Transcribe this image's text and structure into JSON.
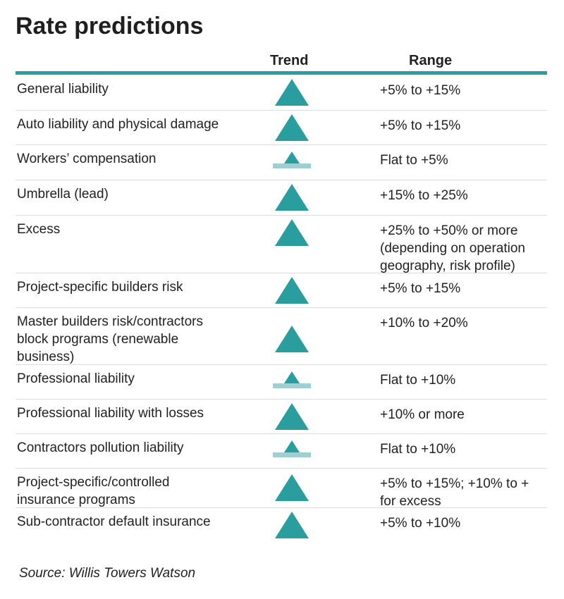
{
  "title": "Rate predictions",
  "headers": {
    "trend": "Trend",
    "range": "Range"
  },
  "colors": {
    "accent": "#2a9d9f",
    "flat_bar": "#9fcfd0"
  },
  "rows": [
    {
      "coverage": "General liability",
      "trend": "up",
      "range": "+5% to +15%"
    },
    {
      "coverage": "Auto liability and physical damage",
      "trend": "up",
      "range": "+5% to +15%"
    },
    {
      "coverage": "Workers’ compensation",
      "trend": "slightly-up",
      "range": "Flat to +5%"
    },
    {
      "coverage": "Umbrella (lead)",
      "trend": "up",
      "range": "+15% to +25%"
    },
    {
      "coverage": "Excess",
      "trend": "up",
      "range": "+25% to +50% or more\n(depending on operation\ngeography, risk profile)"
    },
    {
      "coverage": "Project-specific builders risk",
      "trend": "up",
      "range": "+5% to +15%"
    },
    {
      "coverage": "Master builders risk/contractors\nblock programs (renewable\nbusiness)",
      "trend": "up",
      "range": "+10% to +20%"
    },
    {
      "coverage": "Professional liability",
      "trend": "slightly-up",
      "range": "Flat to +10%"
    },
    {
      "coverage": "Professional liability with losses",
      "trend": "up",
      "range": "+10% or more"
    },
    {
      "coverage": "Contractors pollution liability",
      "trend": "slightly-up",
      "range": "Flat to +10%"
    },
    {
      "coverage": "Project-specific/controlled\ninsurance programs",
      "trend": "up",
      "range": "+5% to +15%; +10% to +\nfor excess"
    },
    {
      "coverage": "Sub-contractor default insurance",
      "trend": "up",
      "range": "+5% to +10%"
    }
  ],
  "source": "Source: Willis Towers Watson"
}
